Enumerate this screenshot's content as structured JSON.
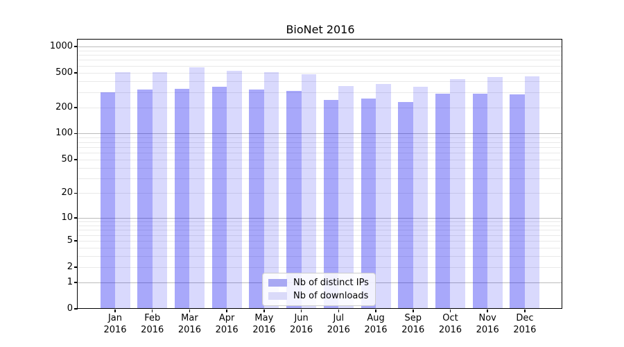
{
  "title": "BioNet 2016",
  "chart_data": {
    "type": "bar",
    "title": "BioNet 2016",
    "categories": [
      "Jan 2016",
      "Feb 2016",
      "Mar 2016",
      "Apr 2016",
      "May 2016",
      "Jun 2016",
      "Jul 2016",
      "Aug 2016",
      "Sep 2016",
      "Oct 2016",
      "Nov 2016",
      "Dec 2016"
    ],
    "month_labels": [
      "Jan",
      "Feb",
      "Mar",
      "Apr",
      "May",
      "Jun",
      "Jul",
      "Aug",
      "Sep",
      "Oct",
      "Nov",
      "Dec"
    ],
    "year_label": "2016",
    "series": [
      {
        "name": "Nb of distinct IPs",
        "color_hex": "#a8a8f3",
        "values": [
          300,
          320,
          330,
          345,
          320,
          310,
          245,
          255,
          230,
          290,
          290,
          285
        ]
      },
      {
        "name": "Nb of downloads",
        "color_hex": "#dadaf9",
        "values": [
          505,
          510,
          580,
          525,
          505,
          480,
          355,
          375,
          345,
          420,
          445,
          455
        ]
      }
    ],
    "xlabel": "",
    "ylabel": "",
    "yscale": "symlog-log1p",
    "ylim": [
      0,
      1200
    ],
    "y_tick_labels": [
      "0",
      "1",
      "2",
      "5",
      "10",
      "20",
      "50",
      "100",
      "200",
      "500",
      "1000"
    ],
    "y_tick_values": [
      0,
      1,
      2,
      5,
      10,
      20,
      50,
      100,
      200,
      500,
      1000
    ],
    "grid": "horizontal, minor + major",
    "legend_position": "bottom-center"
  },
  "colors": {
    "bar_fill_ips": "rgba(0,0,240,0.34)",
    "bar_fill_downloads": "rgba(0,0,240,0.15)",
    "grid_minor": "#e9e9e9",
    "grid_major": "#bbbbbb",
    "spine": "#000000",
    "text": "#000000",
    "legend_border": "#cccccc"
  }
}
